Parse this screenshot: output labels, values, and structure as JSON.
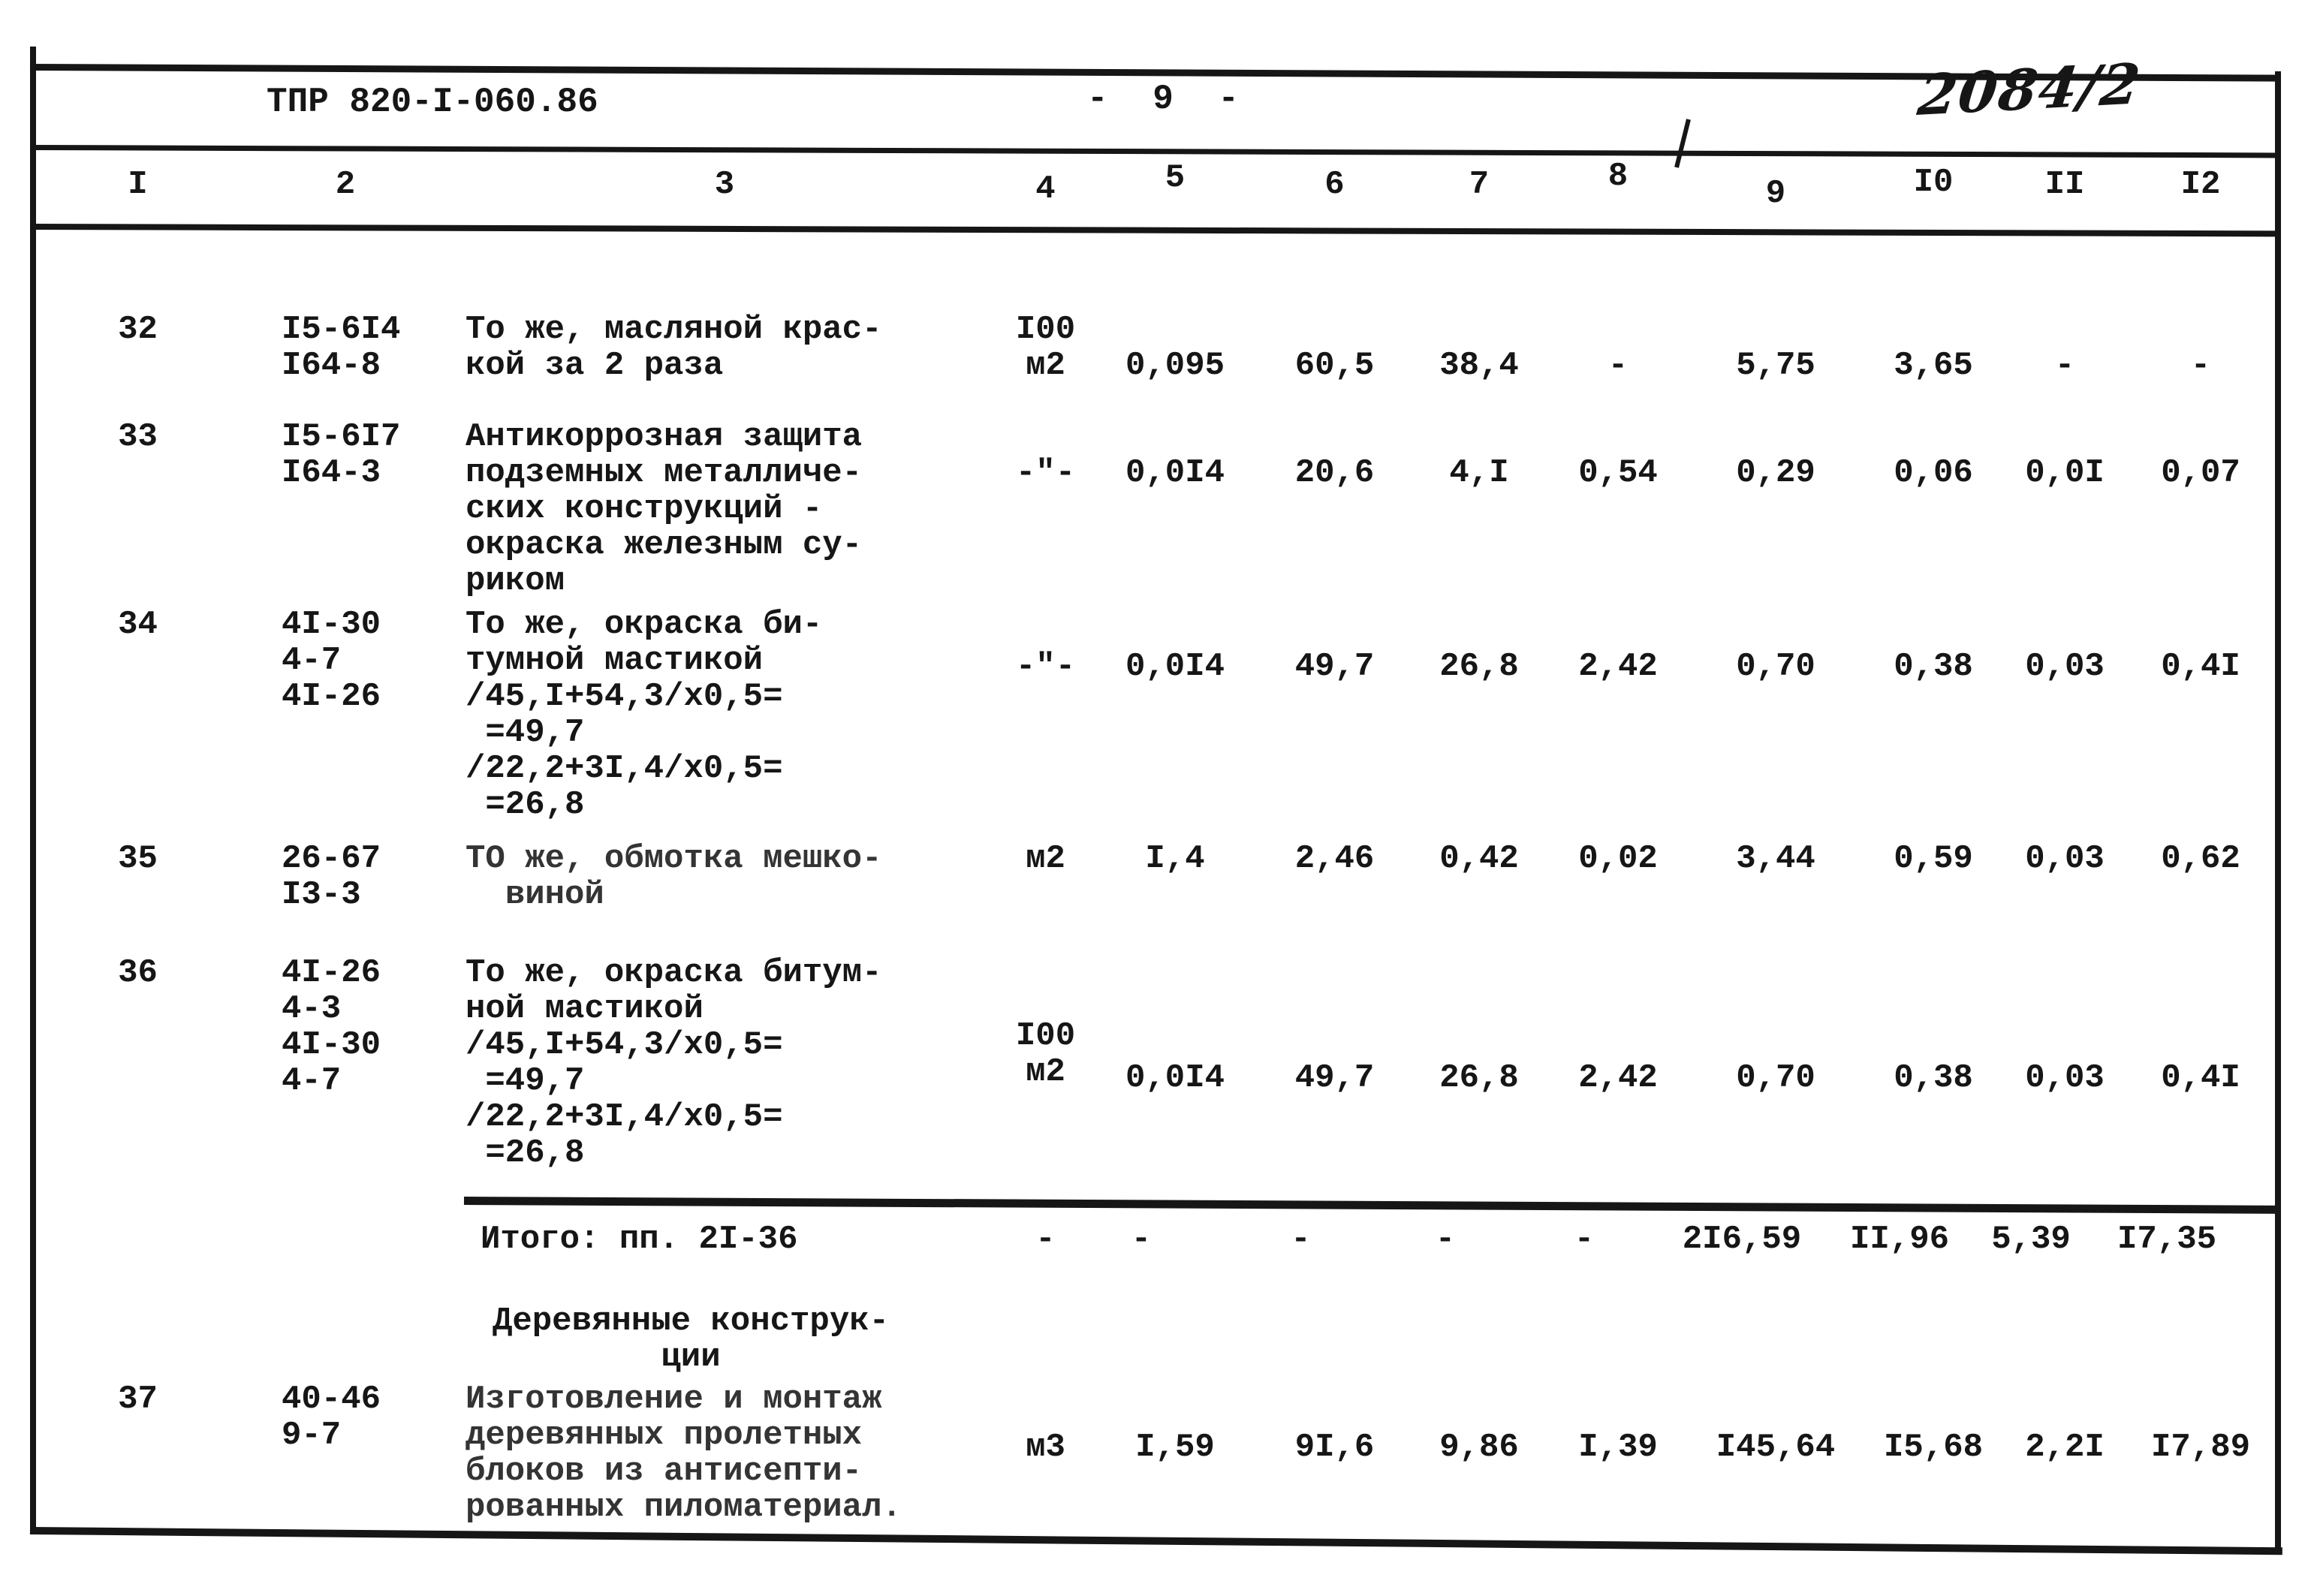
{
  "page": {
    "doc_code": "ТПР 820-I-060.86",
    "page_number": "- 9 -",
    "handwritten_mark": "2084/2",
    "ink_color": "#161616",
    "paper_color": "#ffffff"
  },
  "table": {
    "column_numbers": [
      "I",
      "2",
      "3",
      "4",
      "5",
      "6",
      "7",
      "8",
      "9",
      "I0",
      "II",
      "I2"
    ],
    "rows": [
      {
        "num": "32",
        "codes": "I5-6I4\nI64-8",
        "description": "То же, масляной крас-\nкой за 2 раза",
        "unit": "I00\nм2",
        "values": [
          "0,095",
          "60,5",
          "38,4",
          "-",
          "5,75",
          "3,65",
          "-",
          "-"
        ]
      },
      {
        "num": "33",
        "codes": "I5-6I7\nI64-3",
        "description": "Антикоррозная защита\nподземных металличе-\nских конструкций -\nокраска железным су-\nриком",
        "unit": "-\"-",
        "values": [
          "0,0I4",
          "20,6",
          "4,I",
          "0,54",
          "0,29",
          "0,06",
          "0,0I",
          "0,07"
        ]
      },
      {
        "num": "34",
        "codes": "4I-30\n4-7\n4I-26",
        "description": "То же, окраска би-\nтумной мастикой\n/45,I+54,3/х0,5=\n =49,7\n/22,2+3I,4/х0,5=\n =26,8",
        "unit": "-\"-",
        "values": [
          "0,0I4",
          "49,7",
          "26,8",
          "2,42",
          "0,70",
          "0,38",
          "0,03",
          "0,4I"
        ]
      },
      {
        "num": "35",
        "codes": "26-67\nI3-3",
        "description": "ТО же, обмотка мешко-\n  виной",
        "unit": "м2",
        "values": [
          "I,4",
          "2,46",
          "0,42",
          "0,02",
          "3,44",
          "0,59",
          "0,03",
          "0,62"
        ]
      },
      {
        "num": "36",
        "codes": "4I-26\n4-3\n4I-30\n4-7",
        "description": "То же, окраска битум-\nной мастикой\n/45,I+54,3/х0,5=\n =49,7\n/22,2+3I,4/х0,5=\n =26,8",
        "unit": "I00\nм2",
        "values": [
          "0,0I4",
          "49,7",
          "26,8",
          "2,42",
          "0,70",
          "0,38",
          "0,03",
          "0,4I"
        ]
      },
      {
        "num": "37",
        "codes": "40-46\n9-7",
        "description": "Изготовление и монтаж\nдеревянных пролетных\nблоков из антисепти-\nрованных пиломатериал.",
        "unit": "м3",
        "values": [
          "I,59",
          "9I,6",
          "9,86",
          "I,39",
          "I45,64",
          "I5,68",
          "2,2I",
          "I7,89"
        ]
      }
    ],
    "totals": {
      "label": "Итого: пп. 2I-36",
      "values": [
        "-",
        "-",
        "-",
        "-",
        "-",
        "2I6,59",
        "II,96",
        "5,39",
        "I7,35"
      ]
    },
    "section_header": "Деревянные конструк-\nции"
  }
}
